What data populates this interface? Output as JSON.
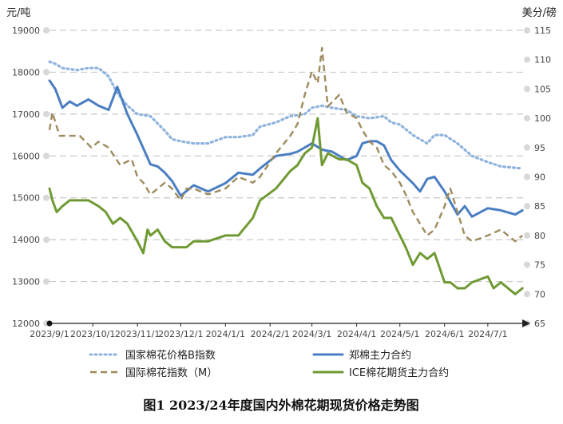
{
  "chart_data": {
    "type": "line",
    "title": "图1 2023/24年度国内外棉花期现货价格走势图",
    "left_unit": "元/吨",
    "right_unit": "美分/磅",
    "y_left": {
      "min": 12000,
      "max": 19000,
      "ticks": [
        "12000",
        "13000",
        "14000",
        "15000",
        "16000",
        "17000",
        "18000",
        "19000"
      ]
    },
    "y_right": {
      "min": 65,
      "max": 115,
      "ticks": [
        "65",
        "70",
        "75",
        "80",
        "85",
        "90",
        "95",
        "100",
        "105",
        "110",
        "115"
      ]
    },
    "x_ticks": [
      "2023/9/1",
      "2023/10/1",
      "2023/11/1",
      "2023/12/1",
      "2024/1/1",
      "2024/2/1",
      "2024/3/1",
      "2024/4/1",
      "2024/5/1",
      "2024/6/1",
      "2024/7/1"
    ],
    "x_domain": [
      "2023-09-01",
      "2024-07-26"
    ],
    "grid": true,
    "legend_position": "bottom",
    "series": [
      {
        "name": "国家棉花价格B指数",
        "axis": "left",
        "style": "dotted",
        "color": "#8fb3de",
        "x": [
          "2023-09-01",
          "2023-09-05",
          "2023-09-10",
          "2023-09-20",
          "2023-09-28",
          "2023-10-05",
          "2023-10-12",
          "2023-10-18",
          "2023-10-25",
          "2023-11-01",
          "2023-11-10",
          "2023-11-20",
          "2023-11-25",
          "2023-12-01",
          "2023-12-10",
          "2023-12-20",
          "2024-01-01",
          "2024-01-10",
          "2024-01-20",
          "2024-01-25",
          "2024-02-05",
          "2024-02-15",
          "2024-02-25",
          "2024-03-01",
          "2024-03-08",
          "2024-03-15",
          "2024-03-25",
          "2024-04-01",
          "2024-04-10",
          "2024-04-20",
          "2024-04-25",
          "2024-05-01",
          "2024-05-10",
          "2024-05-20",
          "2024-05-25",
          "2024-06-01",
          "2024-06-10",
          "2024-06-20",
          "2024-07-01",
          "2024-07-10",
          "2024-07-25"
        ],
        "y": [
          18250,
          18200,
          18100,
          18050,
          18100,
          18100,
          17900,
          17500,
          17200,
          17000,
          16950,
          16600,
          16400,
          16350,
          16300,
          16300,
          16450,
          16450,
          16500,
          16700,
          16800,
          16950,
          17000,
          17150,
          17200,
          17150,
          17100,
          16950,
          16900,
          16950,
          16800,
          16750,
          16500,
          16300,
          16500,
          16500,
          16300,
          16000,
          15850,
          15750,
          15700
        ]
      },
      {
        "name": "郑棉主力合约",
        "axis": "left",
        "style": "solid",
        "color": "#4a7ec2",
        "x": [
          "2023-09-01",
          "2023-09-05",
          "2023-09-10",
          "2023-09-15",
          "2023-09-20",
          "2023-09-28",
          "2023-10-05",
          "2023-10-12",
          "2023-10-18",
          "2023-10-25",
          "2023-11-01",
          "2023-11-10",
          "2023-11-15",
          "2023-11-20",
          "2023-11-25",
          "2023-12-01",
          "2023-12-10",
          "2023-12-20",
          "2024-01-01",
          "2024-01-10",
          "2024-01-20",
          "2024-01-25",
          "2024-02-05",
          "2024-02-15",
          "2024-02-20",
          "2024-02-25",
          "2024-03-01",
          "2024-03-08",
          "2024-03-15",
          "2024-03-20",
          "2024-03-25",
          "2024-04-01",
          "2024-04-05",
          "2024-04-10",
          "2024-04-15",
          "2024-04-20",
          "2024-04-25",
          "2024-05-01",
          "2024-05-10",
          "2024-05-15",
          "2024-05-20",
          "2024-05-25",
          "2024-06-01",
          "2024-06-10",
          "2024-06-15",
          "2024-06-20",
          "2024-07-01",
          "2024-07-10",
          "2024-07-20",
          "2024-07-25"
        ],
        "y": [
          17800,
          17600,
          17150,
          17300,
          17200,
          17350,
          17200,
          17100,
          17650,
          17000,
          16500,
          15800,
          15750,
          15600,
          15400,
          15050,
          15300,
          15150,
          15350,
          15600,
          15550,
          15700,
          16000,
          16050,
          16100,
          16200,
          16300,
          16150,
          16100,
          16000,
          15900,
          16000,
          16300,
          16350,
          16350,
          16250,
          15900,
          15650,
          15350,
          15150,
          15450,
          15500,
          15150,
          14600,
          14800,
          14550,
          14750,
          14700,
          14600,
          14700
        ]
      },
      {
        "name": "国际棉花指数（M）",
        "axis": "right",
        "style": "dashed",
        "color": "#9e8b5e",
        "x": [
          "2023-09-01",
          "2023-09-03",
          "2023-09-08",
          "2023-09-15",
          "2023-09-22",
          "2023-09-30",
          "2023-10-05",
          "2023-10-12",
          "2023-10-20",
          "2023-10-28",
          "2023-11-01",
          "2023-11-05",
          "2023-11-10",
          "2023-11-15",
          "2023-11-20",
          "2023-11-25",
          "2023-12-01",
          "2023-12-05",
          "2023-12-10",
          "2023-12-20",
          "2024-01-01",
          "2024-01-10",
          "2024-01-20",
          "2024-01-25",
          "2024-02-05",
          "2024-02-15",
          "2024-02-20",
          "2024-02-25",
          "2024-03-01",
          "2024-03-05",
          "2024-03-08",
          "2024-03-12",
          "2024-03-20",
          "2024-03-25",
          "2024-04-01",
          "2024-04-05",
          "2024-04-10",
          "2024-04-15",
          "2024-04-20",
          "2024-04-25",
          "2024-05-01",
          "2024-05-05",
          "2024-05-10",
          "2024-05-15",
          "2024-05-20",
          "2024-05-25",
          "2024-06-01",
          "2024-06-05",
          "2024-06-10",
          "2024-06-15",
          "2024-06-20",
          "2024-07-01",
          "2024-07-10",
          "2024-07-20",
          "2024-07-25"
        ],
        "y": [
          98,
          101,
          97,
          97,
          97,
          95,
          96,
          95,
          92,
          93,
          90,
          89,
          87,
          88,
          89,
          88,
          86,
          88,
          88,
          87,
          88,
          90,
          89,
          90,
          94,
          97,
          99,
          104,
          108,
          106,
          112,
          102,
          104,
          101,
          100,
          98,
          96,
          95,
          92,
          91,
          89,
          87,
          84,
          82,
          80,
          81,
          85,
          88,
          84,
          80,
          79,
          80,
          81,
          79,
          80
        ]
      },
      {
        "name": "ICE棉花期货主力合约",
        "axis": "right",
        "style": "solid",
        "color": "#6f9a33",
        "x": [
          "2023-09-01",
          "2023-09-03",
          "2023-09-06",
          "2023-09-10",
          "2023-09-15",
          "2023-09-20",
          "2023-09-28",
          "2023-10-05",
          "2023-10-10",
          "2023-10-15",
          "2023-10-20",
          "2023-10-25",
          "2023-11-01",
          "2023-11-05",
          "2023-11-08",
          "2023-11-10",
          "2023-11-15",
          "2023-11-20",
          "2023-11-25",
          "2023-12-01",
          "2023-12-05",
          "2023-12-10",
          "2023-12-20",
          "2024-01-01",
          "2024-01-10",
          "2024-01-20",
          "2024-01-25",
          "2024-02-05",
          "2024-02-15",
          "2024-02-20",
          "2024-02-25",
          "2024-03-01",
          "2024-03-05",
          "2024-03-08",
          "2024-03-12",
          "2024-03-20",
          "2024-03-25",
          "2024-04-01",
          "2024-04-05",
          "2024-04-10",
          "2024-04-15",
          "2024-04-20",
          "2024-04-25",
          "2024-05-01",
          "2024-05-05",
          "2024-05-10",
          "2024-05-15",
          "2024-05-20",
          "2024-05-25",
          "2024-06-01",
          "2024-06-05",
          "2024-06-10",
          "2024-06-15",
          "2024-06-20",
          "2024-07-01",
          "2024-07-05",
          "2024-07-10",
          "2024-07-20",
          "2024-07-25"
        ],
        "y": [
          88,
          86,
          84,
          85,
          86,
          86,
          86,
          85,
          84,
          82,
          83,
          82,
          79,
          77,
          81,
          80,
          81,
          79,
          78,
          78,
          78,
          79,
          79,
          80,
          80,
          83,
          86,
          88,
          91,
          92,
          94,
          95,
          100,
          92,
          94,
          93,
          93,
          92,
          89,
          88,
          85,
          83,
          83,
          80,
          78,
          75,
          77,
          76,
          77,
          72,
          72,
          71,
          71,
          72,
          73,
          71,
          72,
          70,
          71
        ]
      }
    ]
  }
}
